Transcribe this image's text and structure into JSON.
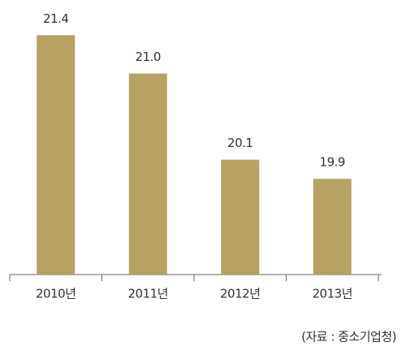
{
  "chart_data": {
    "type": "bar",
    "categories": [
      "2010년",
      "2011년",
      "2012년",
      "2013년"
    ],
    "values": [
      21.4,
      21.0,
      20.1,
      19.9
    ],
    "value_labels": [
      "21.4",
      "21.0",
      "20.1",
      "19.9"
    ],
    "color": "#b6a263",
    "ylim": [
      18.9,
      21.7
    ],
    "source": "(자료 : 중소기업청)"
  }
}
